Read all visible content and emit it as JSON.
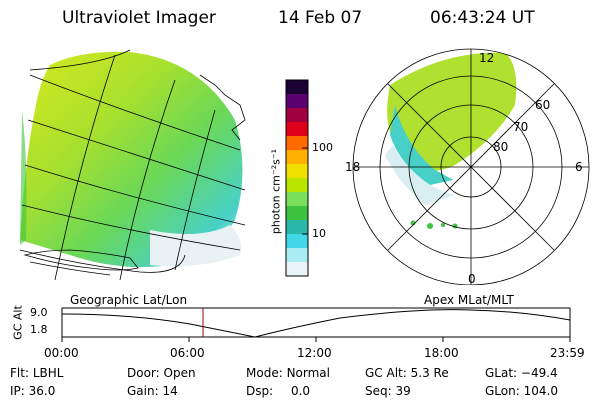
{
  "header": {
    "instrument": "Ultraviolet Imager",
    "date": "14 Feb 07",
    "time": "06:43:24 UT"
  },
  "colorbar": {
    "unit_label": "photon cm⁻²s⁻¹",
    "ticks": [
      "100",
      "10"
    ],
    "colors": [
      "#1a0033",
      "#5a0070",
      "#a00040",
      "#e0001a",
      "#ff6a00",
      "#ffb000",
      "#f0e000",
      "#b8e600",
      "#7ae05a",
      "#3ec43e",
      "#2ab8a8",
      "#40d8e8",
      "#a8eef4",
      "#e8f4f8"
    ]
  },
  "polar_plot": {
    "lat_labels": [
      "60",
      "70",
      "80"
    ],
    "mlt_labels": {
      "top": "12",
      "left": "18",
      "right": "6",
      "bottom": "0"
    }
  },
  "alt_plot": {
    "left_title": "Geographic Lat/Lon",
    "right_title": "Apex MLat/MLT",
    "y_axis_label": "GC Alt",
    "y_ticks": [
      "9.0",
      "1.8"
    ],
    "x_ticks": [
      "00:00",
      "06:00",
      "12:00",
      "18:00",
      "23:59"
    ]
  },
  "info": [
    {
      "label": "Flt:",
      "value": "LBHL"
    },
    {
      "label": "Door:",
      "value": "Open"
    },
    {
      "label": "Mode:",
      "value": "Normal"
    },
    {
      "label": "GC Alt:",
      "value": "5.3 Re"
    },
    {
      "label": "GLat:",
      "value": "−49.4"
    },
    {
      "label": "IP:",
      "value": "36.0"
    },
    {
      "label": "Gain:",
      "value": "14"
    },
    {
      "label": "Dsp:",
      "value": "0.0"
    },
    {
      "label": "Seq:",
      "value": "39"
    },
    {
      "label": "GLon:",
      "value": "104.0"
    }
  ]
}
